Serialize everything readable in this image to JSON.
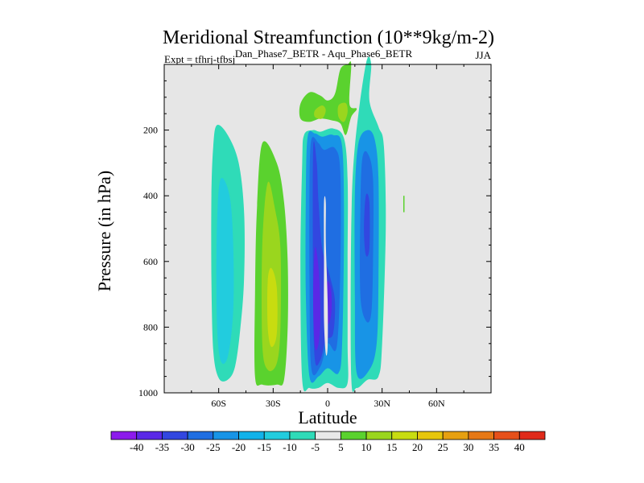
{
  "chart_data": {
    "type": "contour",
    "title": "Meridional Streamfunction (10**9kg/m-2)",
    "subtitle": "Dan_Phase7_BETR - Aqu_Phase6_BETR",
    "experiment_label": "Expt = tfhrj-tfbsj",
    "season": "JJA",
    "xlabel": "Latitude",
    "ylabel": "Pressure (in hPa)",
    "xlim": [
      -90,
      90
    ],
    "ylim": [
      1000,
      0
    ],
    "x_ticks": [
      {
        "value": -60,
        "label": "60S"
      },
      {
        "value": -30,
        "label": "30S"
      },
      {
        "value": 0,
        "label": "0"
      },
      {
        "value": 30,
        "label": "30N"
      },
      {
        "value": 60,
        "label": "60N"
      }
    ],
    "y_ticks": [
      {
        "value": 200,
        "label": "200"
      },
      {
        "value": 400,
        "label": "400"
      },
      {
        "value": 600,
        "label": "600"
      },
      {
        "value": 800,
        "label": "800"
      },
      {
        "value": 1000,
        "label": "1000"
      }
    ],
    "background_color": "#e6e6e6",
    "colorbar": {
      "labels": [
        "-40",
        "-35",
        "-30",
        "-25",
        "-20",
        "-15",
        "-10",
        "-5",
        "5",
        "10",
        "15",
        "20",
        "25",
        "30",
        "35",
        "40"
      ],
      "colors": [
        "#8c1aec",
        "#5a28e6",
        "#3247e0",
        "#1f6ee2",
        "#1894e6",
        "#12b2ea",
        "#22ccde",
        "#2fdbb8",
        "#e8e8e8",
        "#5ad22e",
        "#9ad61e",
        "#c8dc10",
        "#e6c60c",
        "#e6a010",
        "#e67816",
        "#e6501a",
        "#e02a1a"
      ]
    },
    "regions": [
      {
        "name": "southern-outer-cell",
        "color": "#2fdbb8",
        "outline": [
          [
            -61,
            185
          ],
          [
            -55,
            215
          ],
          [
            -49,
            300
          ],
          [
            -46,
            450
          ],
          [
            -46,
            650
          ],
          [
            -48,
            800
          ],
          [
            -51,
            920
          ],
          [
            -55,
            960
          ],
          [
            -60,
            955
          ],
          [
            -63,
            870
          ],
          [
            -64,
            650
          ],
          [
            -64,
            400
          ],
          [
            -63,
            250
          ]
        ]
      },
      {
        "name": "southern-outer-core",
        "color": "#22ccde",
        "outline": [
          [
            -59,
            350
          ],
          [
            -54,
            400
          ],
          [
            -52,
            550
          ],
          [
            -52,
            750
          ],
          [
            -55,
            890
          ],
          [
            -59,
            900
          ],
          [
            -61,
            780
          ],
          [
            -61,
            500
          ]
        ]
      },
      {
        "name": "southern-ferrel-outer",
        "color": "#5ad22e",
        "outline": [
          [
            -36,
            240
          ],
          [
            -28,
            300
          ],
          [
            -24,
            420
          ],
          [
            -22,
            600
          ],
          [
            -22,
            800
          ],
          [
            -24,
            960
          ],
          [
            -28,
            975
          ],
          [
            -36,
            975
          ],
          [
            -40,
            950
          ],
          [
            -40,
            700
          ],
          [
            -39,
            450
          ]
        ]
      },
      {
        "name": "southern-ferrel-mid",
        "color": "#9ad61e",
        "outline": [
          [
            -33,
            360
          ],
          [
            -29,
            440
          ],
          [
            -26,
            560
          ],
          [
            -26,
            800
          ],
          [
            -28,
            910
          ],
          [
            -33,
            930
          ],
          [
            -36,
            850
          ],
          [
            -36,
            550
          ]
        ]
      },
      {
        "name": "southern-ferrel-core",
        "color": "#c8dc10",
        "outline": [
          [
            -31,
            620
          ],
          [
            -28,
            680
          ],
          [
            -28,
            820
          ],
          [
            -31,
            860
          ],
          [
            -33,
            800
          ],
          [
            -33,
            660
          ]
        ]
      },
      {
        "name": "upper-tropical-positive",
        "color": "#5ad22e",
        "outline": [
          [
            -15,
            120
          ],
          [
            -10,
            85
          ],
          [
            -4,
            95
          ],
          [
            0,
            110
          ],
          [
            4,
            90
          ],
          [
            7,
            15
          ],
          [
            11,
            0
          ],
          [
            13,
            0
          ],
          [
            12,
            120
          ],
          [
            16,
            135
          ],
          [
            13,
            160
          ],
          [
            10,
            215
          ],
          [
            7,
            180
          ],
          [
            2,
            170
          ],
          [
            -4,
            165
          ],
          [
            -10,
            175
          ],
          [
            -15,
            165
          ]
        ]
      },
      {
        "name": "upper-tropical-positive-core",
        "color": "#9ad61e",
        "outline": [
          [
            -7,
            140
          ],
          [
            -3,
            125
          ],
          [
            -1,
            140
          ],
          [
            -3,
            165
          ],
          [
            -7,
            160
          ]
        ]
      },
      {
        "name": "upper-tropical-positive-core-2",
        "color": "#9ad61e",
        "outline": [
          [
            6,
            125
          ],
          [
            10,
            118
          ],
          [
            11,
            145
          ],
          [
            9,
            175
          ],
          [
            6,
            160
          ]
        ]
      },
      {
        "name": "hadley-outer",
        "color": "#2fdbb8",
        "outline": [
          [
            -13,
            215
          ],
          [
            -8,
            200
          ],
          [
            -4,
            205
          ],
          [
            3,
            195
          ],
          [
            9,
            225
          ],
          [
            11,
            350
          ],
          [
            11,
            600
          ],
          [
            11,
            850
          ],
          [
            11,
            970
          ],
          [
            6,
            985
          ],
          [
            0,
            970
          ],
          [
            -5,
            985
          ],
          [
            -10,
            985
          ],
          [
            -14,
            960
          ],
          [
            -15,
            600
          ],
          [
            -14,
            300
          ]
        ]
      },
      {
        "name": "hadley-mid",
        "color": "#1894e6",
        "outline": [
          [
            -11,
            220
          ],
          [
            -7,
            210
          ],
          [
            -3,
            220
          ],
          [
            3,
            215
          ],
          [
            8,
            250
          ],
          [
            9,
            500
          ],
          [
            8,
            850
          ],
          [
            6,
            940
          ],
          [
            0,
            925
          ],
          [
            -5,
            950
          ],
          [
            -10,
            950
          ],
          [
            -12,
            700
          ],
          [
            -12,
            400
          ]
        ]
      },
      {
        "name": "hadley-inner",
        "color": "#1f6ee2",
        "outline": [
          [
            -9,
            230
          ],
          [
            -5,
            240
          ],
          [
            -2,
            260
          ],
          [
            4,
            255
          ],
          [
            7,
            330
          ],
          [
            7,
            620
          ],
          [
            5,
            860
          ],
          [
            0,
            850
          ],
          [
            -4,
            920
          ],
          [
            -9,
            925
          ],
          [
            -10,
            650
          ],
          [
            -10,
            380
          ]
        ]
      },
      {
        "name": "hadley-core",
        "color": "#3247e0",
        "outline": [
          [
            -8,
            260
          ],
          [
            -6,
            300
          ],
          [
            -5,
            420
          ],
          [
            -3,
            560
          ],
          [
            1,
            640
          ],
          [
            4,
            720
          ],
          [
            3,
            820
          ],
          [
            -1,
            840
          ],
          [
            -4,
            900
          ],
          [
            -7,
            900
          ],
          [
            -8,
            700
          ]
        ]
      },
      {
        "name": "hadley-deep-core",
        "color": "#5a28e6",
        "outline": [
          [
            -7,
            560
          ],
          [
            -5,
            620
          ],
          [
            -4,
            760
          ],
          [
            -5,
            850
          ],
          [
            -7,
            860
          ],
          [
            -8,
            720
          ]
        ]
      },
      {
        "name": "hadley-deep-core-2",
        "color": "#5a28e6",
        "outline": [
          [
            0,
            660
          ],
          [
            2,
            690
          ],
          [
            2,
            760
          ],
          [
            0,
            790
          ],
          [
            -1,
            720
          ]
        ]
      },
      {
        "name": "equatorial-gap",
        "color": "#e6e6e6",
        "outline": [
          [
            -2,
            420
          ],
          [
            -1,
            420
          ],
          [
            -1,
            540
          ],
          [
            0,
            720
          ],
          [
            0,
            860
          ],
          [
            -1,
            880
          ],
          [
            -2,
            780
          ],
          [
            -2,
            600
          ]
        ]
      },
      {
        "name": "northern-cell-outer",
        "color": "#2fdbb8",
        "outline": [
          [
            21,
            0
          ],
          [
            24,
            0
          ],
          [
            23,
            110
          ],
          [
            28,
            190
          ],
          [
            31,
            250
          ],
          [
            32,
            500
          ],
          [
            30,
            850
          ],
          [
            28,
            950
          ],
          [
            22,
            960
          ],
          [
            16,
            985
          ],
          [
            13,
            950
          ],
          [
            13,
            500
          ],
          [
            15,
            250
          ]
        ]
      },
      {
        "name": "northern-cell-mid",
        "color": "#1894e6",
        "outline": [
          [
            17,
            240
          ],
          [
            22,
            200
          ],
          [
            26,
            230
          ],
          [
            28,
            350
          ],
          [
            28,
            650
          ],
          [
            27,
            850
          ],
          [
            23,
            930
          ],
          [
            16,
            940
          ],
          [
            15,
            700
          ],
          [
            15,
            400
          ]
        ]
      },
      {
        "name": "northern-cell-inner",
        "color": "#1f6ee2",
        "outline": [
          [
            19,
            290
          ],
          [
            22,
            270
          ],
          [
            25,
            350
          ],
          [
            25,
            600
          ],
          [
            24,
            760
          ],
          [
            21,
            780
          ],
          [
            18,
            700
          ],
          [
            18,
            450
          ]
        ]
      },
      {
        "name": "northern-cell-core",
        "color": "#3247e0",
        "outline": [
          [
            21,
            400
          ],
          [
            23,
            420
          ],
          [
            23,
            560
          ],
          [
            21,
            580
          ],
          [
            20,
            500
          ]
        ]
      }
    ],
    "small_marks": [
      {
        "name": "thin-positive-streak",
        "color": "#5ad22e",
        "x": 42,
        "y_range": [
          400,
          450
        ]
      }
    ]
  }
}
